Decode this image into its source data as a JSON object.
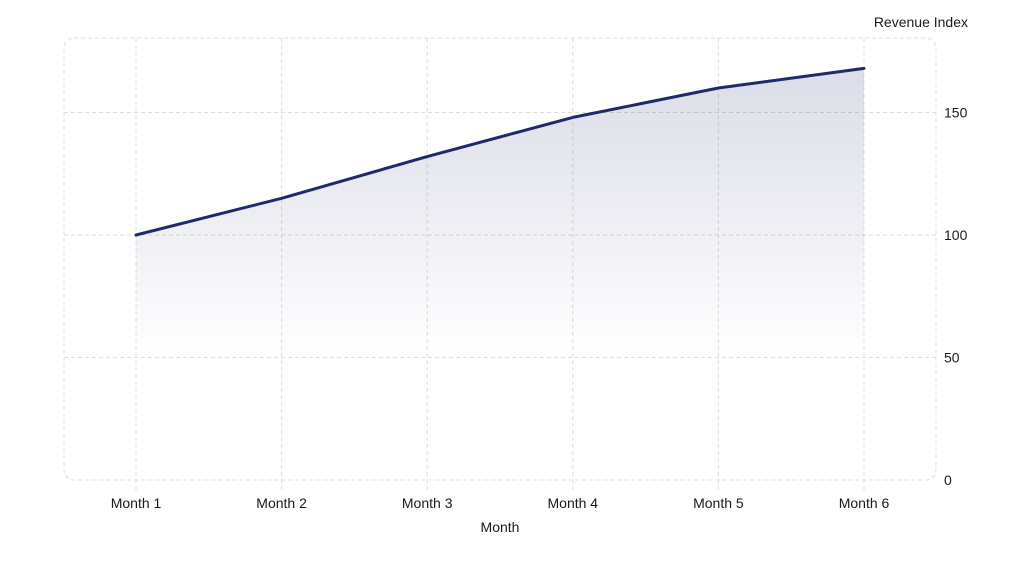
{
  "chart_data": {
    "type": "area",
    "title": "",
    "xlabel": "Month",
    "ylabel": "Revenue Index",
    "categories": [
      "Month 1",
      "Month 2",
      "Month 3",
      "Month 4",
      "Month 5",
      "Month 6"
    ],
    "series": [
      {
        "name": "Revenue Index",
        "values": [
          100,
          115,
          132,
          148,
          160,
          168
        ],
        "color": "#1f2a6b",
        "fill_baseline": 50
      }
    ],
    "yticks": [
      0,
      50,
      100,
      150
    ],
    "ylim": [
      0,
      180
    ],
    "y_axis_position": "right",
    "grid": true,
    "legend": null
  },
  "colors": {
    "line": "#1f2a6b",
    "fill_top": "#1f2a6b",
    "grid": "#dcdcdc",
    "text": "#1a1a1a"
  }
}
